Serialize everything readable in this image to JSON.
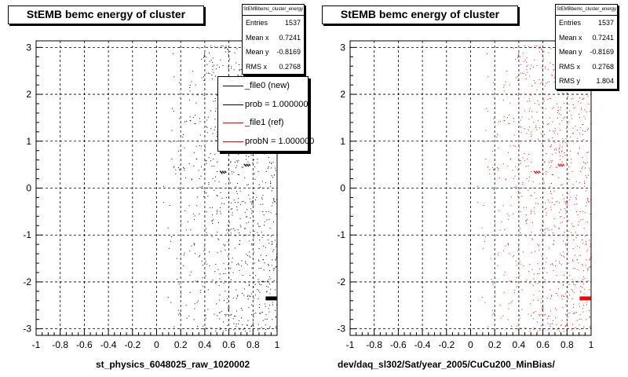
{
  "chart_data": [
    {
      "type": "scatter",
      "title": "StEMB bemc energy of cluster",
      "xlabel": "st_physics_6048025_raw_1020002",
      "xlim": [
        -1,
        1
      ],
      "ylim": [
        -3.14,
        3.14
      ],
      "xticks": [
        "-1",
        "-0.8",
        "-0.6",
        "-0.4",
        "-0.2",
        "0",
        "0.2",
        "0.4",
        "0.6",
        "0.8",
        "1"
      ],
      "yticks": [
        "-3",
        "-2",
        "-1",
        "0",
        "1",
        "2",
        "3"
      ],
      "grid": true,
      "marker_color": "#000000",
      "stats": {
        "title": "StEMBbemc_cluster_energy",
        "rows": [
          {
            "label": "Entries",
            "value": "1537"
          },
          {
            "label": "Mean x",
            "value": "0.7241"
          },
          {
            "label": "Mean y",
            "value": "-0.8169"
          },
          {
            "label": "RMS x",
            "value": "0.2768"
          }
        ]
      },
      "legend": {
        "placement": "top-right",
        "entries": [
          {
            "label": "_file0 (new)",
            "color": "#000000"
          },
          {
            "label": "prob = 1.000000",
            "color": "#000000"
          },
          {
            "label": "_file1 (ref)",
            "color": "#ff0000"
          },
          {
            "label": "probN = 1.000000",
            "color": "#ff0000"
          }
        ]
      },
      "series": [
        {
          "distribution": "x concentrated in 0.05–1, densest near 0.8–1",
          "hot_spots": [
            {
              "x": 0.97,
              "y": -2.36
            },
            {
              "x": 0.55,
              "y": 0.35
            },
            {
              "x": 0.75,
              "y": 0.5
            }
          ]
        }
      ]
    },
    {
      "type": "scatter",
      "title": "StEMB bemc energy of cluster",
      "xlabel": "dev/daq_sl302/Sat/year_2005/CuCu200_MinBias/",
      "xlim": [
        -1,
        1
      ],
      "ylim": [
        -3.14,
        3.14
      ],
      "xticks": [
        "-1",
        "-0.8",
        "-0.6",
        "-0.4",
        "-0.2",
        "0",
        "0.2",
        "0.4",
        "0.6",
        "0.8",
        "1"
      ],
      "yticks": [
        "-3",
        "-2",
        "-1",
        "0",
        "1",
        "2",
        "3"
      ],
      "grid": true,
      "marker_color": "#ff0000",
      "stats": {
        "title": "StEMBbemc_cluster_energy",
        "rows": [
          {
            "label": "Entries",
            "value": "1537"
          },
          {
            "label": "Mean x",
            "value": "0.7241"
          },
          {
            "label": "Mean y",
            "value": "-0.8169"
          },
          {
            "label": "RMS x",
            "value": "0.2768"
          },
          {
            "label": "RMS y",
            "value": "1.804"
          }
        ]
      },
      "series": [
        {
          "distribution": "x concentrated in 0.05–1, densest near 0.8–1",
          "hot_spots": [
            {
              "x": 0.97,
              "y": -2.36
            },
            {
              "x": 0.55,
              "y": 0.35
            },
            {
              "x": 0.75,
              "y": 0.5
            }
          ]
        }
      ]
    }
  ]
}
